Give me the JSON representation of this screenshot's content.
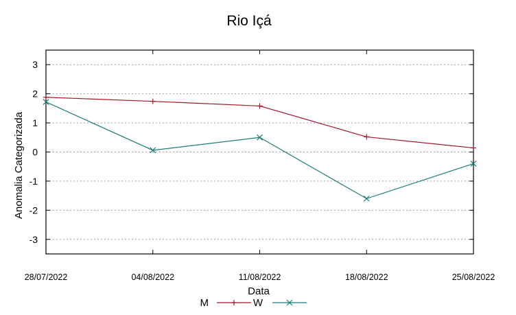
{
  "chart_data": {
    "type": "line",
    "title": "Rio Içá",
    "xlabel": "Data",
    "ylabel": "Anomalia Categorizada",
    "categories": [
      "28/07/2022",
      "04/08/2022",
      "11/08/2022",
      "18/08/2022",
      "25/08/2022"
    ],
    "yticks": [
      "3",
      "2",
      "1",
      "0",
      "-1",
      "-2",
      "-3"
    ],
    "ylim": [
      -3.5,
      3.5
    ],
    "grid": true,
    "legend_position": "bottom-center",
    "series": [
      {
        "name": "M",
        "color": "#a0152a",
        "marker": "plus",
        "values": [
          1.88,
          1.74,
          1.58,
          0.52,
          0.14
        ]
      },
      {
        "name": "W",
        "color": "#1b7a7a",
        "marker": "cross",
        "values": [
          1.72,
          0.06,
          0.5,
          -1.6,
          -0.4
        ]
      }
    ]
  }
}
